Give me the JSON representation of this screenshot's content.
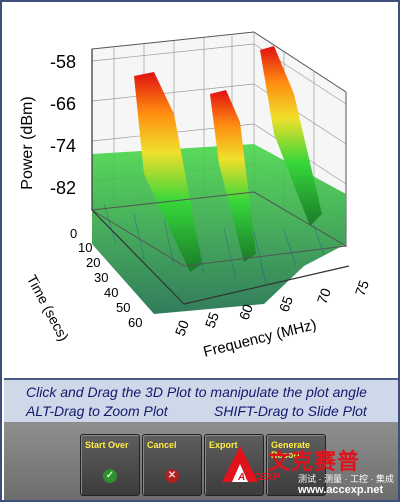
{
  "plot": {
    "y_axis": {
      "title": "Power (dBm)",
      "ticks": [
        "-58",
        "-66",
        "-74",
        "-82"
      ]
    },
    "time_axis": {
      "title": "Time (secs)",
      "ticks": [
        "0",
        "10",
        "20",
        "30",
        "40",
        "50",
        "60"
      ]
    },
    "freq_axis": {
      "title": "Frequency (MHz)",
      "ticks": [
        "50",
        "55",
        "60",
        "65",
        "70",
        "75"
      ]
    }
  },
  "instructions": {
    "line1": "Click and Drag the 3D Plot to manipulate the plot angle",
    "line2_left": "ALT-Drag to Zoom Plot",
    "line2_right": "SHIFT-Drag to Slide Plot"
  },
  "buttons": {
    "start_over": {
      "label": "Start Over",
      "icon": "check-icon"
    },
    "cancel": {
      "label": "Cancel",
      "icon": "x-icon"
    },
    "export": {
      "label": "Export"
    },
    "generate_report": {
      "label": "Generate Report"
    }
  },
  "watermark": {
    "name": "文克赛普",
    "brand": "ACCEXP",
    "tagline": "测试 · 测量 · 工控 · 集成",
    "url": "www.accexp.net"
  }
}
